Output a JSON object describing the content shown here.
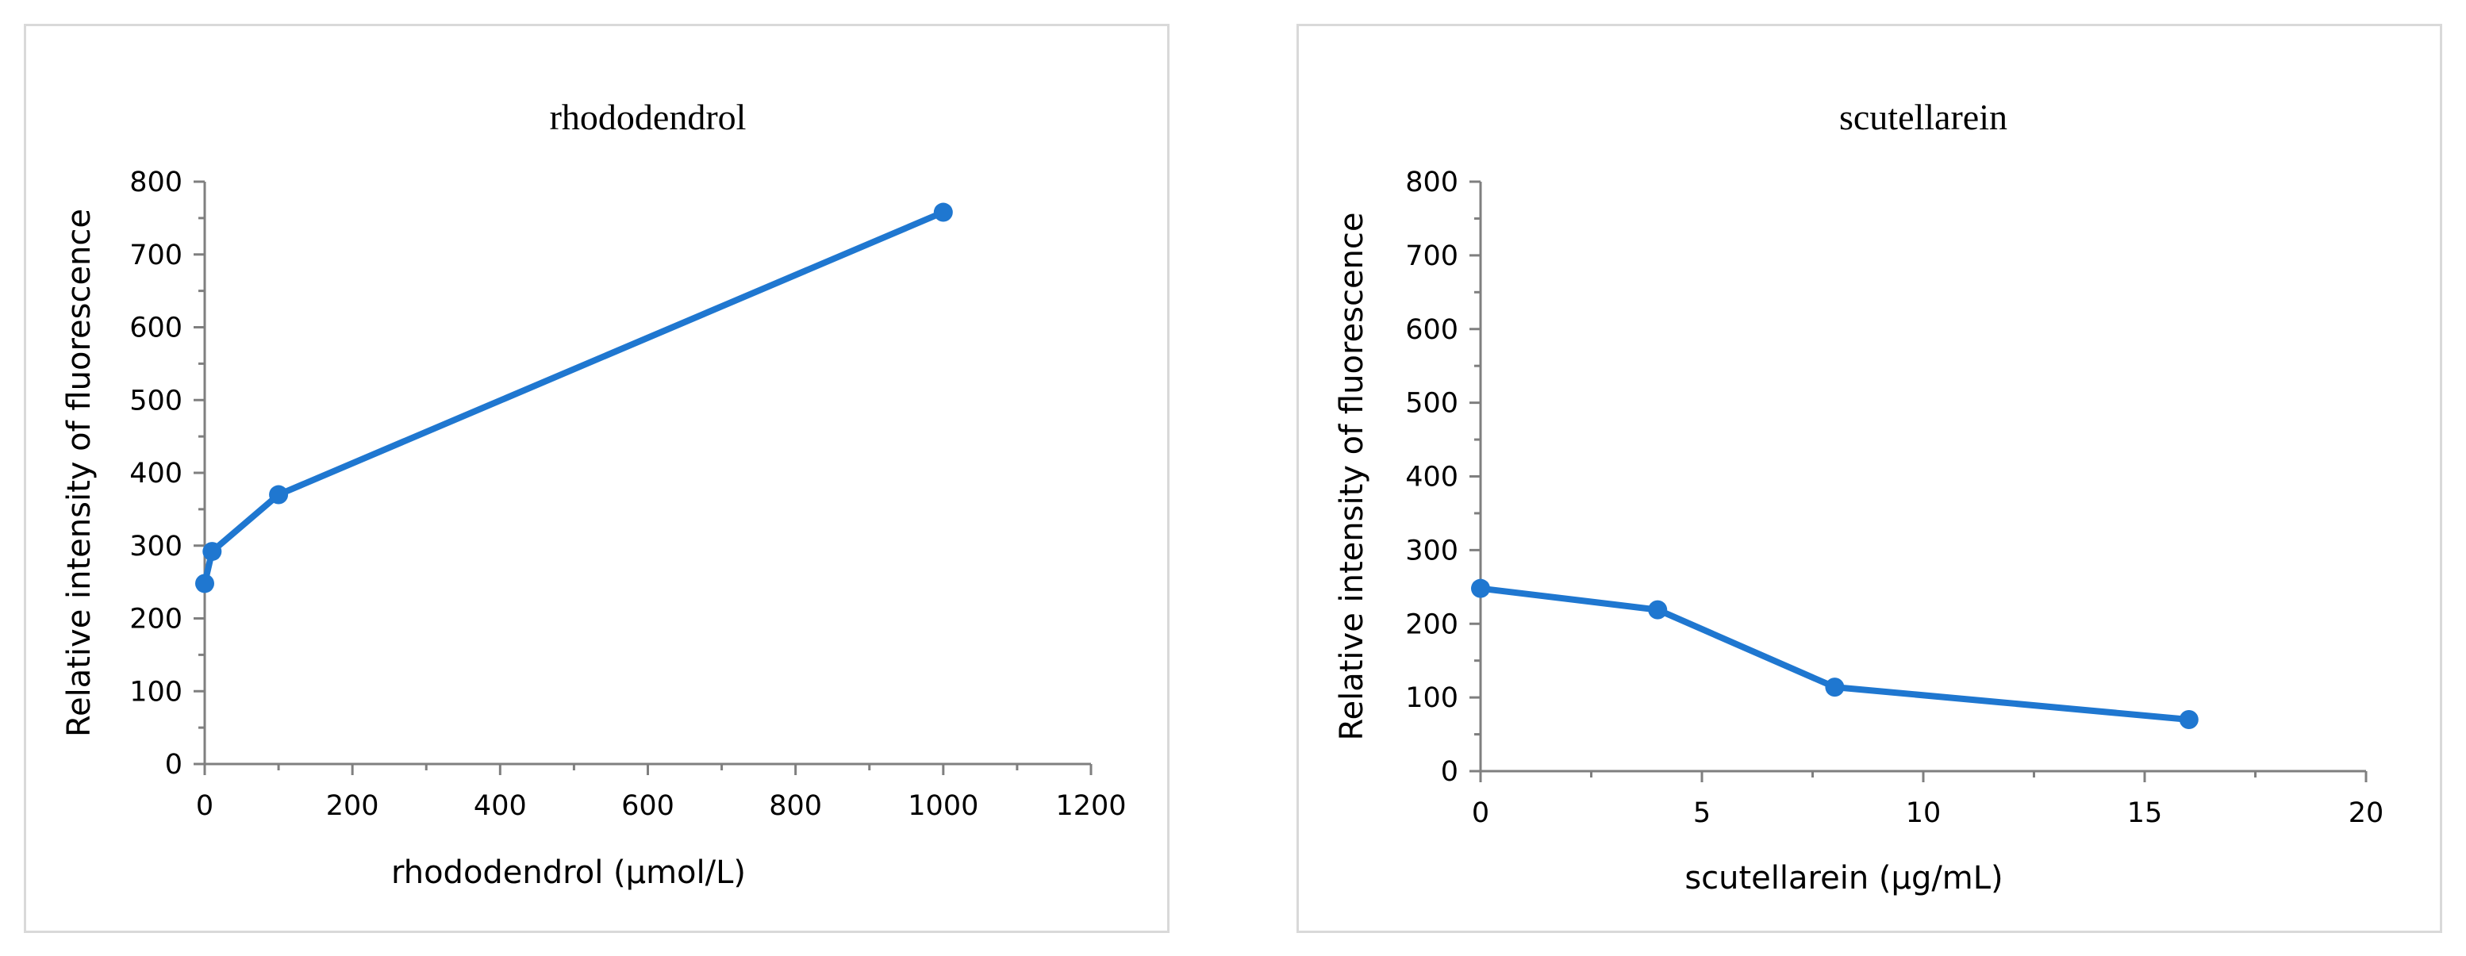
{
  "chart_data": [
    {
      "type": "line",
      "title": "rhododendrol",
      "xlabel": "rhododendrol  (µmol/L)",
      "ylabel": "Relative intensity of fluorescence",
      "xlim": [
        0,
        1200
      ],
      "ylim": [
        0,
        800
      ],
      "x_ticks": [
        0,
        200,
        400,
        600,
        800,
        1000,
        1200
      ],
      "y_ticks": [
        0,
        100,
        200,
        300,
        400,
        500,
        600,
        700,
        800
      ],
      "x_tick_labels": [
        "0",
        "200",
        "400",
        "600",
        "800",
        "1000",
        "1200"
      ],
      "y_tick_labels": [
        "0",
        "100",
        "200",
        "300",
        "400",
        "500",
        "600",
        "700",
        "800"
      ],
      "grid": false,
      "series": [
        {
          "name": "rhododendrol",
          "color": "#1f77d0",
          "x": [
            0,
            10,
            100,
            1000
          ],
          "y": [
            248,
            292,
            370,
            758
          ]
        }
      ]
    },
    {
      "type": "line",
      "title": "scutellarein",
      "xlabel": "scutellarein (µg/mL)",
      "ylabel": "Relative intensity of fluorescence",
      "xlim": [
        0,
        20
      ],
      "ylim": [
        0,
        800
      ],
      "x_ticks": [
        0,
        5,
        10,
        15,
        20
      ],
      "y_ticks": [
        0,
        100,
        200,
        300,
        400,
        500,
        600,
        700,
        800
      ],
      "x_tick_labels": [
        "0",
        "5",
        "10",
        "15",
        "20"
      ],
      "y_tick_labels": [
        "0",
        "100",
        "200",
        "300",
        "400",
        "500",
        "600",
        "700",
        "800"
      ],
      "grid": false,
      "series": [
        {
          "name": "scutellarein",
          "color": "#1f77d0",
          "x": [
            0,
            4,
            8,
            16
          ],
          "y": [
            248,
            219,
            114,
            70
          ]
        }
      ]
    }
  ]
}
